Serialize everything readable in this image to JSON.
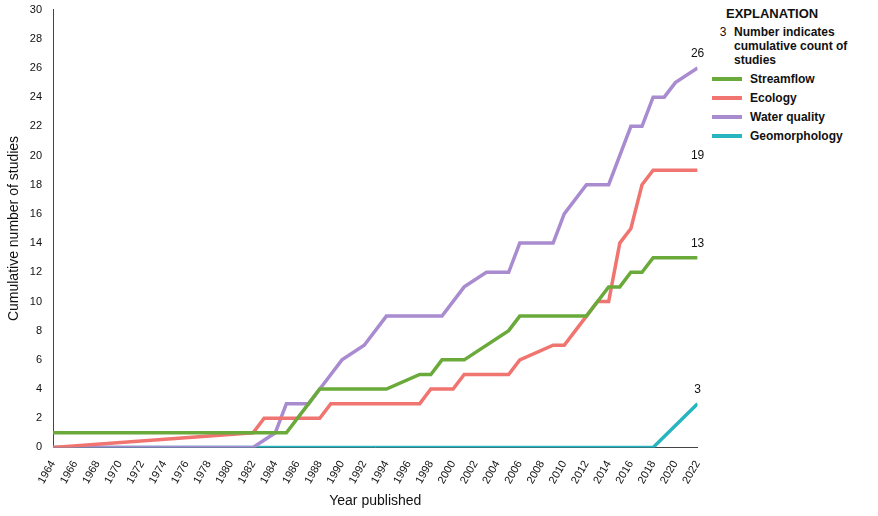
{
  "chart_data": {
    "type": "line",
    "x_label": "Year published",
    "y_label": "Cumulative number of studies",
    "legend_title": "EXPLANATION",
    "legend_note": {
      "symbol": "3",
      "text": "Number indicates cumulative count of studies"
    },
    "xlim": [
      1964,
      2022
    ],
    "xticks": [
      1964,
      1966,
      1968,
      1970,
      1972,
      1974,
      1976,
      1978,
      1980,
      1982,
      1984,
      1986,
      1988,
      1990,
      1992,
      1994,
      1996,
      1998,
      2000,
      2002,
      2004,
      2006,
      2008,
      2010,
      2012,
      2014,
      2016,
      2018,
      2020,
      2022
    ],
    "ylim": [
      0,
      30
    ],
    "yticks": [
      0,
      2,
      4,
      6,
      8,
      10,
      12,
      14,
      16,
      18,
      20,
      22,
      24,
      26,
      28,
      30
    ],
    "grid": false,
    "legend": "right",
    "series": [
      {
        "name": "Streamflow",
        "color": "#6aaa3a",
        "x": [
          1964,
          1985,
          1987,
          1988,
          1994,
          1997,
          1998,
          1999,
          2001,
          2005,
          2006,
          2012,
          2014,
          2015,
          2016,
          2017,
          2018,
          2022
        ],
        "values": [
          1,
          1,
          3,
          4,
          4,
          5,
          5,
          6,
          6,
          8,
          9,
          9,
          11,
          11,
          12,
          12,
          13,
          13
        ]
      },
      {
        "name": "Ecology",
        "color": "#f07470",
        "x": [
          1964,
          1982,
          1983,
          1988,
          1989,
          1997,
          1998,
          2000,
          2001,
          2005,
          2006,
          2009,
          2010,
          2012,
          2013,
          2014,
          2015,
          2016,
          2017,
          2018,
          2022
        ],
        "values": [
          0,
          1,
          2,
          2,
          3,
          3,
          4,
          4,
          5,
          5,
          6,
          7,
          7,
          9,
          10,
          10,
          14,
          15,
          18,
          19,
          19
        ]
      },
      {
        "name": "Water quality",
        "color": "#a98bd0",
        "x": [
          1964,
          1982,
          1984,
          1985,
          1987,
          1989,
          1990,
          1992,
          1994,
          1999,
          2001,
          2003,
          2005,
          2006,
          2009,
          2010,
          2012,
          2014,
          2016,
          2017,
          2018,
          2019,
          2020,
          2022
        ],
        "values": [
          0,
          0,
          1,
          3,
          3,
          5,
          6,
          7,
          9,
          9,
          11,
          12,
          12,
          14,
          14,
          16,
          18,
          18,
          22,
          22,
          24,
          24,
          25,
          26
        ]
      },
      {
        "name": "Geomorphology",
        "color": "#27b6c0",
        "x": [
          1964,
          2018,
          2022
        ],
        "values": [
          0,
          0,
          3
        ]
      }
    ],
    "annotations": [
      {
        "text": "26",
        "x": 2022,
        "y": 26
      },
      {
        "text": "19",
        "x": 2022,
        "y": 19
      },
      {
        "text": "13",
        "x": 2022,
        "y": 13
      },
      {
        "text": "3",
        "x": 2022,
        "y": 3
      }
    ]
  }
}
